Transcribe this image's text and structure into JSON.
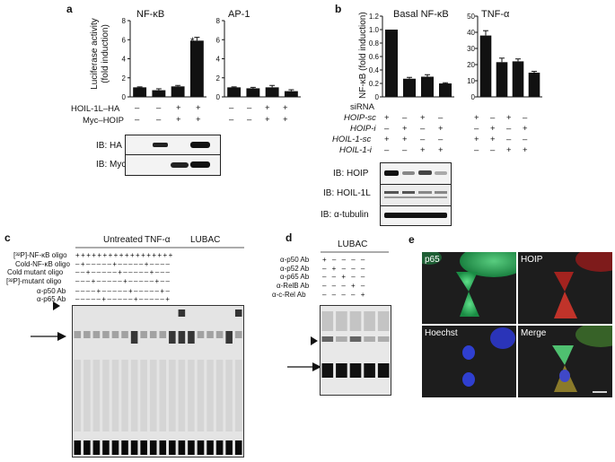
{
  "panel_labels": {
    "a": "a",
    "b": "b",
    "c": "c",
    "d": "d",
    "e": "e"
  },
  "panel_a": {
    "ylabel": "Luciferase activity",
    "ylabel2": "(fold induction)",
    "chart_nfkb": {
      "title": "NF-κB",
      "ticks": [
        "0",
        "2",
        "4",
        "6",
        "8"
      ],
      "star": "*"
    },
    "chart_ap1": {
      "title": "AP-1",
      "ticks": [
        "0",
        "2",
        "4",
        "6",
        "8"
      ]
    },
    "row_labels": [
      "HOIL-1L–HA",
      "Myc–HOIP"
    ],
    "row_signs": [
      [
        "–",
        "–",
        "+",
        "+"
      ],
      [
        "–",
        "–",
        "+",
        "+"
      ]
    ],
    "ib_labels": [
      "IB: HA",
      "IB: Myc"
    ]
  },
  "panel_b": {
    "ylabel": "NF-κB (fold induction)",
    "chart_basal": {
      "title": "Basal NF-κB",
      "ticks": [
        "0",
        "0.2",
        "0.4",
        "0.6",
        "0.8",
        "1.0",
        "1.2"
      ]
    },
    "chart_tnf": {
      "title": "TNF-α",
      "ticks": [
        "0",
        "10",
        "20",
        "30",
        "40",
        "50"
      ]
    },
    "sirna_label": "siRNA",
    "rows": [
      {
        "label": "HOIP-sc",
        "signs": [
          "+",
          "–",
          "+",
          "–"
        ]
      },
      {
        "label": "HOIP-i",
        "signs": [
          "–",
          "+",
          "–",
          "+"
        ]
      },
      {
        "label": "HOIL-1-sc",
        "signs": [
          "+",
          "+",
          "–",
          "–"
        ]
      },
      {
        "label": "HOIL-1-i",
        "signs": [
          "–",
          "–",
          "+",
          "+"
        ]
      }
    ],
    "ib_labels": [
      "IB: HOIP",
      "IB: HOIL-1L",
      "IB: α-tubulin"
    ]
  },
  "panel_c": {
    "groups": [
      "Untreated",
      "TNF-α",
      "LUBAC"
    ],
    "rows": [
      {
        "label": "[³²P]-NF-κB oligo",
        "signs": "+ + + + + + + + + + + + + + + + + +"
      },
      {
        "label": "Cold-NF-κB oligo",
        "signs": "– + – – – – – + – – – – – + – – – –"
      },
      {
        "label": "Cold mutant oligo",
        "signs": "– – + – – – – – + – – – – – + – – –"
      },
      {
        "label": "[³²P]-mutant oligo",
        "signs": "– – – + – – – – – + – – – – – + – –"
      },
      {
        "label": "α-p50 Ab",
        "signs": "– – – – + – – – – – + – – – – – + –"
      },
      {
        "label": "α-p65 Ab",
        "signs": "– – – – – + – – – – – + – – – – – +"
      }
    ]
  },
  "panel_d": {
    "group": "LUBAC",
    "rows": [
      {
        "label": "α-p50 Ab",
        "signs": "+ – – – –"
      },
      {
        "label": "α-p52 Ab",
        "signs": "– + – – –"
      },
      {
        "label": "α-p65 Ab",
        "signs": "– – + – –"
      },
      {
        "label": "α-RelB Ab",
        "signs": "– – – + –"
      },
      {
        "label": "α-c-Rel Ab",
        "signs": "– – – – +"
      }
    ]
  },
  "panel_e": {
    "quadrants": [
      "p65",
      "HOIP",
      "Hoechst",
      "Merge"
    ]
  },
  "chart_data": [
    {
      "type": "bar",
      "title": "NF-κB",
      "ylabel": "Luciferase activity (fold induction)",
      "ylim": [
        0,
        8
      ],
      "categories": [
        "1",
        "2",
        "3",
        "4"
      ],
      "values": [
        1.0,
        0.7,
        1.1,
        5.9
      ],
      "errors": [
        0.05,
        0.15,
        0.1,
        0.35
      ]
    },
    {
      "type": "bar",
      "title": "AP-1",
      "ylim": [
        0,
        8
      ],
      "categories": [
        "1",
        "2",
        "3",
        "4"
      ],
      "values": [
        1.0,
        0.9,
        1.0,
        0.6
      ],
      "errors": [
        0.05,
        0.1,
        0.2,
        0.15
      ]
    },
    {
      "type": "bar",
      "title": "Basal NF-κB",
      "ylabel": "NF-κB (fold induction)",
      "ylim": [
        0,
        1.2
      ],
      "categories": [
        "1",
        "2",
        "3",
        "4"
      ],
      "values": [
        1.0,
        0.27,
        0.3,
        0.2
      ],
      "errors": [
        0,
        0.02,
        0.03,
        0.01
      ]
    },
    {
      "type": "bar",
      "title": "TNF-α",
      "ylim": [
        0,
        50
      ],
      "categories": [
        "1",
        "2",
        "3",
        "4"
      ],
      "values": [
        38,
        21.5,
        22,
        15
      ],
      "errors": [
        3,
        2.5,
        1.5,
        0.8
      ]
    }
  ]
}
